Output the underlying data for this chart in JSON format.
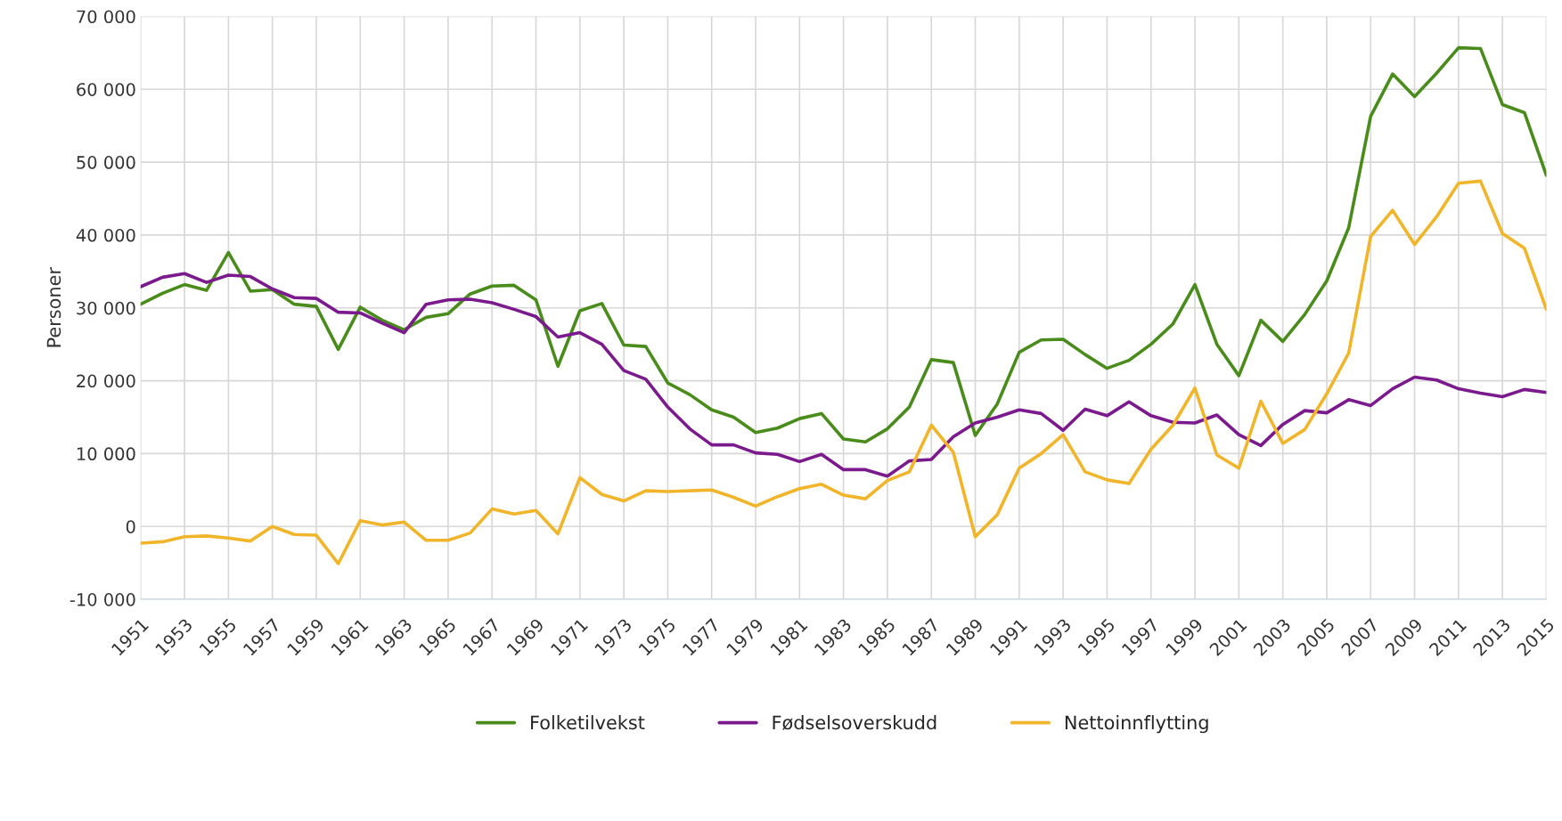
{
  "chart_data": {
    "type": "line",
    "ylabel": "Personer",
    "x": [
      1951,
      1952,
      1953,
      1954,
      1955,
      1956,
      1957,
      1958,
      1959,
      1960,
      1961,
      1962,
      1963,
      1964,
      1965,
      1966,
      1967,
      1968,
      1969,
      1970,
      1971,
      1972,
      1973,
      1974,
      1975,
      1976,
      1977,
      1978,
      1979,
      1980,
      1981,
      1982,
      1983,
      1984,
      1985,
      1986,
      1987,
      1988,
      1989,
      1990,
      1991,
      1992,
      1993,
      1994,
      1995,
      1996,
      1997,
      1998,
      1999,
      2000,
      2001,
      2002,
      2003,
      2004,
      2005,
      2006,
      2007,
      2008,
      2009,
      2010,
      2011,
      2012,
      2013,
      2014,
      2015
    ],
    "series": [
      {
        "name": "Folketilvekst",
        "color": "#4a8c1c",
        "values": [
          30500,
          32000,
          33200,
          32400,
          37600,
          32300,
          32500,
          30500,
          30200,
          24300,
          30100,
          28300,
          27000,
          28700,
          29200,
          31900,
          33000,
          33100,
          31100,
          22000,
          29600,
          30600,
          24900,
          24700,
          19700,
          18100,
          16000,
          15000,
          12900,
          13500,
          14800,
          15500,
          12000,
          11600,
          13400,
          16400,
          22900,
          22500,
          12500,
          16800,
          23900,
          25600,
          25700,
          23600,
          21700,
          22800,
          25000,
          27800,
          33200,
          25000,
          20700,
          28300,
          25400,
          29100,
          33700,
          41000,
          56300,
          62100,
          59000,
          62200,
          65700,
          65600,
          57900,
          56800,
          48200
        ]
      },
      {
        "name": "Fødselsoverskudd",
        "color": "#7a1a8c",
        "values": [
          32900,
          34200,
          34700,
          33500,
          34500,
          34300,
          32600,
          31400,
          31300,
          29400,
          29300,
          27900,
          26600,
          30500,
          31100,
          31200,
          30700,
          29800,
          28800,
          26000,
          26600,
          25000,
          21400,
          20200,
          16400,
          13400,
          11200,
          11200,
          10100,
          9900,
          8900,
          9900,
          7800,
          7800,
          6900,
          9000,
          9200,
          12300,
          14200,
          15000,
          16000,
          15500,
          13200,
          16100,
          15200,
          17100,
          15200,
          14300,
          14200,
          15300,
          12600,
          11100,
          14000,
          15900,
          15600,
          17400,
          16600,
          18900,
          20500,
          20100,
          18900,
          18300,
          17800,
          18800,
          18400
        ]
      },
      {
        "name": "Nettoinnflytting",
        "color": "#f0b52a",
        "values": [
          -2300,
          -2100,
          -1400,
          -1300,
          -1600,
          -2000,
          0,
          -1100,
          -1200,
          -5100,
          800,
          200,
          600,
          -1900,
          -1900,
          -900,
          2400,
          1700,
          2200,
          -1000,
          6700,
          4400,
          3500,
          4900,
          4800,
          4900,
          5000,
          4000,
          2800,
          4100,
          5200,
          5800,
          4300,
          3800,
          6300,
          7500,
          13900,
          10200,
          -1400,
          1600,
          8000,
          10000,
          12600,
          7500,
          6400,
          5900,
          10600,
          13900,
          19000,
          9800,
          8000,
          17200,
          11400,
          13300,
          18200,
          23800,
          39800,
          43400,
          38700,
          42500,
          47100,
          47400,
          40200,
          38200,
          29800
        ]
      }
    ],
    "xlim": [
      1951,
      2015
    ],
    "xticks": [
      1951,
      1953,
      1955,
      1957,
      1959,
      1961,
      1963,
      1965,
      1967,
      1969,
      1971,
      1973,
      1975,
      1977,
      1979,
      1981,
      1983,
      1985,
      1987,
      1989,
      1991,
      1993,
      1995,
      1997,
      1999,
      2001,
      2003,
      2005,
      2007,
      2009,
      2011,
      2013,
      2015
    ],
    "ylim": [
      -10000,
      70000
    ],
    "yticks": [
      {
        "value": -10000,
        "label": "-10 000"
      },
      {
        "value": 0,
        "label": "0"
      },
      {
        "value": 10000,
        "label": "10 000"
      },
      {
        "value": 20000,
        "label": "20 000"
      },
      {
        "value": 30000,
        "label": "30 000"
      },
      {
        "value": 40000,
        "label": "40 000"
      },
      {
        "value": 50000,
        "label": "50 000"
      },
      {
        "value": 60000,
        "label": "60 000"
      },
      {
        "value": 70000,
        "label": "70 000"
      }
    ],
    "grid": true,
    "legend": "bottom",
    "marker": "none",
    "line_style": "solid"
  }
}
